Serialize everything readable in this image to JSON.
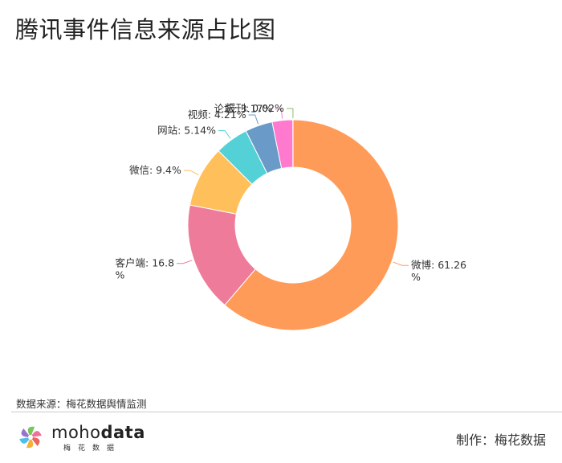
{
  "page": {
    "title": "腾讯事件信息来源占比图"
  },
  "chart_data": {
    "type": "pie",
    "donut": true,
    "title": "腾讯事件信息来源占比图",
    "slices": [
      {
        "label": "微博",
        "value": 61.26,
        "color": "#FF9B58",
        "display": [
          "微博: 61.26",
          "%"
        ],
        "side": "right"
      },
      {
        "label": "客户端",
        "value": 16.8,
        "color": "#EE7B9A",
        "display": [
          "客户端: 16.8",
          "%"
        ],
        "side": "left"
      },
      {
        "label": "微信",
        "value": 9.4,
        "color": "#FFC05C",
        "display": [
          "微信: 9.4%"
        ],
        "side": "left"
      },
      {
        "label": "网站",
        "value": 5.14,
        "color": "#53D1D6",
        "display": [
          "网站: 5.14%"
        ],
        "side": "left"
      },
      {
        "label": "视频",
        "value": 4.21,
        "color": "#6A9BC8",
        "display": [
          "视频: 4.21%"
        ],
        "side": "left"
      },
      {
        "label": "论坛",
        "value": 3.17,
        "color": "#FF7ACE",
        "display": [
          "论坛: 3.17%"
        ],
        "side": "left"
      },
      {
        "label": "报刊",
        "value": 0.02,
        "color": "#8DBE63",
        "display": [
          "报刊: 0.02%"
        ],
        "side": "left"
      }
    ]
  },
  "footer": {
    "source": "数据来源：梅花数据舆情监测",
    "maker": "制作：梅花数据",
    "logo": {
      "word_light": "moho",
      "word_bold": "data",
      "sub": "梅花数据",
      "icon": "pinwheel-logo-icon",
      "colors": [
        "#E8554E",
        "#F5A623",
        "#3BB9E6",
        "#8E63C9",
        "#6CC04A",
        "#F06292"
      ]
    }
  }
}
